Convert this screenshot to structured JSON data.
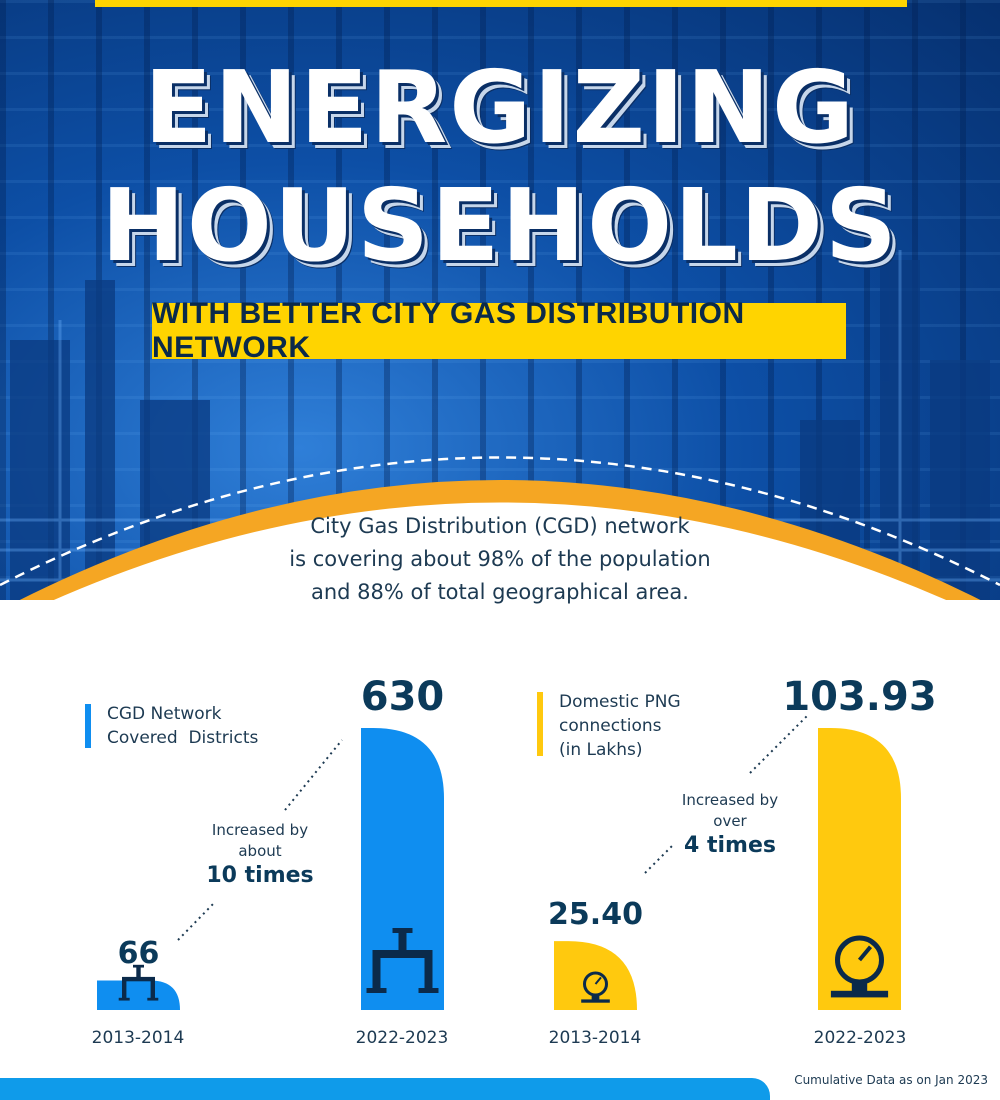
{
  "header": {
    "title_line1": "ENERGIZING",
    "title_line2": "HOUSEHOLDS",
    "subtitle": "WITH BETTER CITY GAS DISTRIBUTION NETWORK"
  },
  "intro": {
    "line1": "City Gas Distribution (CGD) network",
    "line2": "is covering about 98% of the population",
    "line3": "and 88% of total geographical area."
  },
  "chart_data": [
    {
      "type": "bar",
      "title": "",
      "legend_lines": [
        "CGD Network",
        "Covered  Districts"
      ],
      "categories": [
        "2013-2014",
        "2022-2023"
      ],
      "values": [
        66,
        630
      ],
      "value_labels": [
        "66",
        "630"
      ],
      "color": "#0f8ef0",
      "annotation": {
        "lines": [
          "Increased by",
          "about"
        ],
        "emphasis": "10 times"
      }
    },
    {
      "type": "bar",
      "title": "",
      "legend_lines": [
        "Domestic PNG",
        "connections",
        "(in Lakhs)"
      ],
      "categories": [
        "2013-2014",
        "2022-2023"
      ],
      "values": [
        25.4,
        103.93
      ],
      "value_labels": [
        "25.40",
        "103.93"
      ],
      "color": "#ffc90e",
      "annotation": {
        "lines": [
          "Increased by",
          "over"
        ],
        "emphasis": "4 times"
      }
    }
  ],
  "footnote": "Cumulative Data as on Jan 2023",
  "colors": {
    "blue": "#0f8ef0",
    "yellow": "#ffd400",
    "navy": "#0b3a5a",
    "orange": "#f5a623"
  },
  "icons": {
    "cgd": "gas-pipe-valve-icon",
    "png": "gas-meter-gauge-icon"
  }
}
